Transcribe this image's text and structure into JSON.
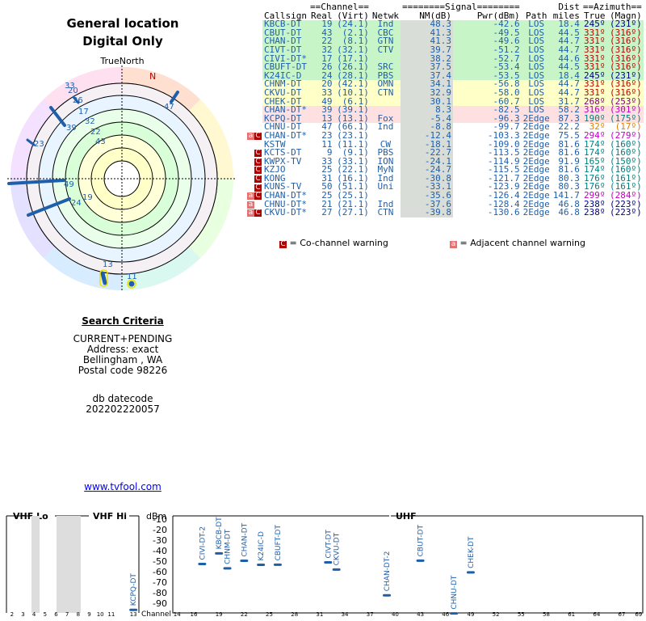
{
  "header": {
    "title1": "General location",
    "title2": "Digital Only",
    "true_north": "TrueNorth",
    "north": "N"
  },
  "polar_labels": [
    "33",
    "20",
    "26",
    "17",
    "32",
    "22",
    "43",
    "47",
    "39",
    "23",
    "49",
    "24",
    "19",
    "13",
    "11"
  ],
  "criteria": {
    "heading": "Search Criteria",
    "lines": [
      "CURRENT+PENDING",
      "Address: exact",
      "Bellingham , WA",
      "Postal code 98226"
    ],
    "db_label": "db datecode",
    "db_value": "202202220057",
    "link": "www.tvfool.com"
  },
  "table": {
    "group_headers": {
      "channel": "==Channel==",
      "signal": "========Signal========",
      "dist": "Dist",
      "azimuth": "==Azimuth=="
    },
    "headers": [
      "Callsign",
      "Real",
      "(Virt)",
      "Netwk",
      "NM(dB)",
      "Pwr(dBm)",
      "Path",
      "miles",
      "True",
      "(Magn)"
    ],
    "rows": [
      {
        "call": "KBCB-DT",
        "real": "19",
        "virt": "(24.1)",
        "net": "Ind",
        "nm": "48.3",
        "pwr": "-42.6",
        "path": "LOS",
        "dist": "18.4",
        "true": "245º",
        "magn": "(231º)",
        "bg": "#c8f5c8",
        "az": "#000080",
        "warn": ""
      },
      {
        "call": "CBUT-DT",
        "real": "43",
        "virt": "(2.1)",
        "net": "CBC",
        "nm": "41.3",
        "pwr": "-49.5",
        "path": "LOS",
        "dist": "44.5",
        "true": "331º",
        "magn": "(316º)",
        "bg": "#c8f5c8",
        "az": "#c00000",
        "warn": ""
      },
      {
        "call": "CHAN-DT",
        "real": "22",
        "virt": "(8.1)",
        "net": "GTN",
        "nm": "41.3",
        "pwr": "-49.6",
        "path": "LOS",
        "dist": "44.7",
        "true": "331º",
        "magn": "(316º)",
        "bg": "#c8f5c8",
        "az": "#c00000",
        "warn": ""
      },
      {
        "call": "CIVT-DT",
        "real": "32",
        "virt": "(32.1)",
        "net": "CTV",
        "nm": "39.7",
        "pwr": "-51.2",
        "path": "LOS",
        "dist": "44.7",
        "true": "331º",
        "magn": "(316º)",
        "bg": "#c8f5c8",
        "az": "#c00000",
        "warn": ""
      },
      {
        "call": "CIVI-DT*",
        "real": "17",
        "virt": "(17.1)",
        "net": "",
        "nm": "38.2",
        "pwr": "-52.7",
        "path": "LOS",
        "dist": "44.6",
        "true": "331º",
        "magn": "(316º)",
        "bg": "#c8f5c8",
        "az": "#c00000",
        "warn": ""
      },
      {
        "call": "CBUFT-DT",
        "real": "26",
        "virt": "(26.1)",
        "net": "SRC",
        "nm": "37.5",
        "pwr": "-53.4",
        "path": "LOS",
        "dist": "44.5",
        "true": "331º",
        "magn": "(316º)",
        "bg": "#c8f5c8",
        "az": "#c00000",
        "warn": ""
      },
      {
        "call": "K24IC-D",
        "real": "24",
        "virt": "(28.1)",
        "net": "PBS",
        "nm": "37.4",
        "pwr": "-53.5",
        "path": "LOS",
        "dist": "18.4",
        "true": "245º",
        "magn": "(231º)",
        "bg": "#c8f5c8",
        "az": "#000080",
        "warn": ""
      },
      {
        "call": "CHNM-DT",
        "real": "20",
        "virt": "(42.1)",
        "net": "OMN",
        "nm": "34.1",
        "pwr": "-56.8",
        "path": "LOS",
        "dist": "44.7",
        "true": "331º",
        "magn": "(316º)",
        "bg": "#ffffc8",
        "az": "#c00000",
        "warn": ""
      },
      {
        "call": "CKVU-DT",
        "real": "33",
        "virt": "(10.1)",
        "net": "CTN",
        "nm": "32.9",
        "pwr": "-58.0",
        "path": "LOS",
        "dist": "44.7",
        "true": "331º",
        "magn": "(316º)",
        "bg": "#ffffc8",
        "az": "#c00000",
        "warn": ""
      },
      {
        "call": "CHEK-DT",
        "real": "49",
        "virt": "(6.1)",
        "net": "",
        "nm": "30.1",
        "pwr": "-60.7",
        "path": "LOS",
        "dist": "31.7",
        "true": "268º",
        "magn": "(253º)",
        "bg": "#ffffc8",
        "az": "#800080",
        "warn": ""
      },
      {
        "call": "CHAN-DT*",
        "real": "39",
        "virt": "(39.1)",
        "net": "",
        "nm": "8.3",
        "pwr": "-82.5",
        "path": "LOS",
        "dist": "58.2",
        "true": "316º",
        "magn": "(301º)",
        "bg": "#ffe0e0",
        "az": "#c000c0",
        "warn": ""
      },
      {
        "call": "KCPQ-DT",
        "real": "13",
        "virt": "(13.1)",
        "net": "Fox",
        "nm": "-5.4",
        "pwr": "-96.3",
        "path": "2Edge",
        "dist": "87.3",
        "true": "190º",
        "magn": "(175º)",
        "bg": "#ffe0e0",
        "az": "#008080",
        "warn": ""
      },
      {
        "call": "CHNU-DT",
        "real": "47",
        "virt": "(66.1)",
        "net": "Ind",
        "nm": "-8.8",
        "pwr": "-99.7",
        "path": "2Edge",
        "dist": "22.2",
        "true": "32º",
        "magn": "(17º)",
        "bg": "#ffffff",
        "az": "#e08000",
        "warn": ""
      },
      {
        "call": "CHAN-DT*",
        "real": "23",
        "virt": "(23.1)",
        "net": "",
        "nm": "-12.4",
        "pwr": "-103.3",
        "path": "2Edge",
        "dist": "75.5",
        "true": "294º",
        "magn": "(279º)",
        "bg": "#ffffff",
        "az": "#c000c0",
        "warn": "AC"
      },
      {
        "call": "KSTW",
        "real": "11",
        "virt": "(11.1)",
        "net": "CW",
        "nm": "-18.1",
        "pwr": "-109.0",
        "path": "2Edge",
        "dist": "81.6",
        "true": "174º",
        "magn": "(160º)",
        "bg": "#ffffff",
        "az": "#008080",
        "warn": ""
      },
      {
        "call": "KCTS-DT",
        "real": "9",
        "virt": "(9.1)",
        "net": "PBS",
        "nm": "-22.7",
        "pwr": "-113.5",
        "path": "2Edge",
        "dist": "81.6",
        "true": "174º",
        "magn": "(160º)",
        "bg": "#ffffff",
        "az": "#008080",
        "warn": "C"
      },
      {
        "call": "KWPX-TV",
        "real": "33",
        "virt": "(33.1)",
        "net": "ION",
        "nm": "-24.1",
        "pwr": "-114.9",
        "path": "2Edge",
        "dist": "91.9",
        "true": "165º",
        "magn": "(150º)",
        "bg": "#ffffff",
        "az": "#008080",
        "warn": "C"
      },
      {
        "call": "KZJO",
        "real": "25",
        "virt": "(22.1)",
        "net": "MyN",
        "nm": "-24.7",
        "pwr": "-115.5",
        "path": "2Edge",
        "dist": "81.6",
        "true": "174º",
        "magn": "(160º)",
        "bg": "#ffffff",
        "az": "#008080",
        "warn": "C"
      },
      {
        "call": "KONG",
        "real": "31",
        "virt": "(16.1)",
        "net": "Ind",
        "nm": "-30.8",
        "pwr": "-121.7",
        "path": "2Edge",
        "dist": "80.3",
        "true": "176º",
        "magn": "(161º)",
        "bg": "#ffffff",
        "az": "#008080",
        "warn": "C"
      },
      {
        "call": "KUNS-TV",
        "real": "50",
        "virt": "(51.1)",
        "net": "Uni",
        "nm": "-33.1",
        "pwr": "-123.9",
        "path": "2Edge",
        "dist": "80.3",
        "true": "176º",
        "magn": "(161º)",
        "bg": "#ffffff",
        "az": "#008080",
        "warn": "C"
      },
      {
        "call": "CHAN-DT*",
        "real": "25",
        "virt": "(25.1)",
        "net": "",
        "nm": "-35.6",
        "pwr": "-126.4",
        "path": "2Edge",
        "dist": "141.7",
        "true": "299º",
        "magn": "(284º)",
        "bg": "#ffffff",
        "az": "#c000c0",
        "warn": "AC"
      },
      {
        "call": "CHNU-DT*",
        "real": "21",
        "virt": "(21.1)",
        "net": "Ind",
        "nm": "-37.6",
        "pwr": "-128.4",
        "path": "2Edge",
        "dist": "46.8",
        "true": "238º",
        "magn": "(223º)",
        "bg": "#ffffff",
        "az": "#000080",
        "warn": "A"
      },
      {
        "call": "CKVU-DT*",
        "real": "27",
        "virt": "(27.1)",
        "net": "CTN",
        "nm": "-39.8",
        "pwr": "-130.6",
        "path": "2Edge",
        "dist": "46.8",
        "true": "238º",
        "magn": "(223º)",
        "bg": "#ffffff",
        "az": "#000080",
        "warn": "AC"
      }
    ],
    "legend": {
      "co": "= Co-channel warning",
      "adj": "= Adjacent channel warning",
      "co_glyph": "C",
      "adj_glyph": "a"
    }
  },
  "spectrum": {
    "sections": {
      "vhf_lo": "VHF Lo",
      "vhf_hi": "VHF Hi",
      "uhf": "UHF"
    },
    "unit": "dBm",
    "channel_label": "Channel",
    "db_ticks": [
      "-10",
      "-20",
      "-30",
      "-40",
      "-50",
      "-60",
      "-70",
      "-80",
      "-90"
    ],
    "vhf_ticks": [
      "2",
      "3",
      "4",
      "5",
      "6",
      "7",
      "8",
      "9",
      "10",
      "11",
      "13"
    ],
    "uhf_ticks": [
      "14",
      "16",
      "19",
      "22",
      "25",
      "28",
      "31",
      "34",
      "37",
      "40",
      "43",
      "46",
      "49",
      "52",
      "55",
      "58",
      "61",
      "64",
      "67",
      "69"
    ],
    "stations": [
      {
        "label": "KCPQ-DT",
        "ch": 13,
        "dbm": -96.3
      },
      {
        "label": "CIVI-DT-2",
        "ch": 17,
        "dbm": -52.7
      },
      {
        "label": "KBCB-DT",
        "ch": 19,
        "dbm": -42.6
      },
      {
        "label": "CHNM-DT",
        "ch": 20,
        "dbm": -56.8
      },
      {
        "label": "CHAN-DT",
        "ch": 22,
        "dbm": -49.6
      },
      {
        "label": "K24IC-D",
        "ch": 24,
        "dbm": -53.5
      },
      {
        "label": "CBUFT-DT",
        "ch": 26,
        "dbm": -53.4
      },
      {
        "label": "CIVT-DT",
        "ch": 32,
        "dbm": -51.2
      },
      {
        "label": "CKVU-DT",
        "ch": 33,
        "dbm": -58.0
      },
      {
        "label": "CHAN-DT-2",
        "ch": 39,
        "dbm": -82.5
      },
      {
        "label": "CBUT-DT",
        "ch": 43,
        "dbm": -49.5
      },
      {
        "label": "CHNU-DT",
        "ch": 47,
        "dbm": -99.7
      },
      {
        "label": "CHEK-DT",
        "ch": 49,
        "dbm": -60.7
      }
    ]
  },
  "colors": {
    "link": "#0000ff",
    "marker": "#1f5faa",
    "grey_band": "#dddddd"
  }
}
